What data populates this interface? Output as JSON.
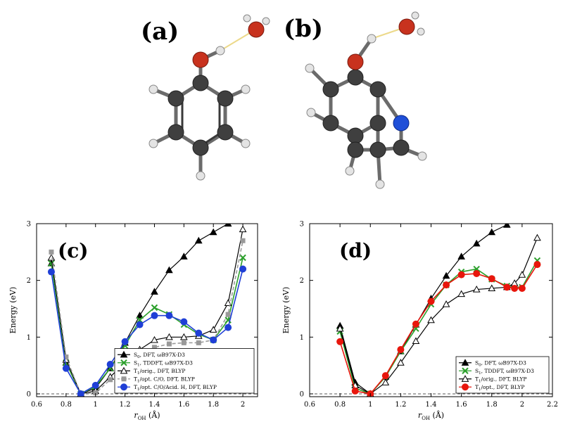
{
  "molecules": {
    "label_a": "(a)",
    "label_b": "(b)"
  },
  "chart_data": [
    {
      "type": "line",
      "panel_label": "(c)",
      "xlabel": "r_OH (Å)",
      "xlabel_main": "r",
      "xlabel_sub": "OH",
      "xlabel_unit": "(Å)",
      "ylabel": "Energy (eV)",
      "xlim": [
        0.6,
        2.1
      ],
      "ylim": [
        -0.05,
        3
      ],
      "xticks": [
        0.6,
        0.8,
        1.0,
        1.2,
        1.4,
        1.6,
        1.8,
        2.0
      ],
      "xtick_labels": [
        "0.6",
        "0.8",
        "1",
        "1.2",
        "1.4",
        "1.6",
        "1.8",
        "2"
      ],
      "yticks": [
        0,
        1,
        2,
        3
      ],
      "ytick_labels": [
        "0",
        "1",
        "2",
        "3"
      ],
      "grid": false,
      "legend_position": "bottom-right",
      "series": [
        {
          "name": "S0, DFT, ωB97X-D3",
          "label_main": "S",
          "label_sub": "0",
          "label_rest": ", DFT, ωB97X-D3",
          "color": "#000000",
          "marker": "triangle-filled",
          "dashed": false,
          "x": [
            0.7,
            0.8,
            0.9,
            1.0,
            1.1,
            1.2,
            1.3,
            1.4,
            1.5,
            1.6,
            1.7,
            1.8,
            1.9
          ],
          "y": [
            2.3,
            0.55,
            0.0,
            0.1,
            0.45,
            0.9,
            1.38,
            1.8,
            2.18,
            2.42,
            2.7,
            2.85,
            3.0
          ]
        },
        {
          "name": "S1, TDDFT, ωB97X-D3",
          "label_main": "S",
          "label_sub": "1",
          "label_rest": ", TDDFT, ωB97X-D3",
          "color": "#2ca02c",
          "marker": "x",
          "dashed": false,
          "x": [
            0.7,
            0.8,
            0.9,
            1.0,
            1.1,
            1.2,
            1.3,
            1.4,
            1.5,
            1.6,
            1.7,
            1.8,
            1.9,
            2.0
          ],
          "y": [
            2.3,
            0.55,
            0.0,
            0.13,
            0.45,
            0.85,
            1.3,
            1.52,
            1.4,
            1.22,
            1.05,
            0.95,
            1.3,
            2.4
          ]
        },
        {
          "name": "T1/orig., DFT, BLYP",
          "label_main": "T",
          "label_sub": "1",
          "label_rest": "/orig., DFT, BLYP",
          "color": "#000000",
          "marker": "triangle-open",
          "dashed": false,
          "x": [
            0.7,
            0.8,
            0.9,
            1.0,
            1.1,
            1.2,
            1.3,
            1.4,
            1.5,
            1.6,
            1.7,
            1.8,
            1.9,
            2.0
          ],
          "y": [
            2.4,
            0.6,
            0.0,
            0.05,
            0.3,
            0.55,
            0.78,
            0.95,
            1.0,
            1.0,
            1.02,
            1.13,
            1.6,
            2.9
          ]
        },
        {
          "name": "T1/opt. C/O, DFT, BLYP",
          "label_main": "T",
          "label_sub": "1",
          "label_rest": "/opt. C/O, DFT, BLYP",
          "color": "#999999",
          "marker": "square",
          "dashed": true,
          "x": [
            0.7,
            0.8,
            0.9,
            1.0,
            1.1,
            1.2,
            1.3,
            1.4,
            1.5,
            1.6,
            1.7,
            1.8,
            1.9,
            2.0
          ],
          "y": [
            2.5,
            0.65,
            0.0,
            0.02,
            0.25,
            0.48,
            0.68,
            0.82,
            0.88,
            0.9,
            0.9,
            0.95,
            1.4,
            2.7
          ]
        },
        {
          "name": "T1/opt. C/O/Acid. H, DFT, BLYP",
          "label_main": "T",
          "label_sub": "1",
          "label_rest": "/opt. C/O/Acid. H, DFT, BLYP",
          "color": "#1f3fd6",
          "marker": "circle",
          "dashed": false,
          "x": [
            0.7,
            0.8,
            0.9,
            1.0,
            1.1,
            1.2,
            1.3,
            1.4,
            1.5,
            1.6,
            1.7,
            1.8,
            1.9,
            2.0
          ],
          "y": [
            2.15,
            0.45,
            0.0,
            0.15,
            0.52,
            0.92,
            1.22,
            1.38,
            1.38,
            1.27,
            1.07,
            0.95,
            1.17,
            2.2
          ]
        }
      ]
    },
    {
      "type": "line",
      "panel_label": "(d)",
      "xlabel": "r_OH (Å)",
      "xlabel_main": "r",
      "xlabel_sub": "OH",
      "xlabel_unit": "(Å)",
      "ylabel": "Energy (eV)",
      "xlim": [
        0.6,
        2.2
      ],
      "ylim": [
        -0.05,
        3
      ],
      "xticks": [
        0.6,
        0.8,
        1.0,
        1.2,
        1.4,
        1.6,
        1.8,
        2.0,
        2.2
      ],
      "xtick_labels": [
        "0.6",
        "0.8",
        "1",
        "1.2",
        "1.4",
        "1.6",
        "1.8",
        "2",
        "2.2"
      ],
      "yticks": [
        0,
        1,
        2,
        3
      ],
      "ytick_labels": [
        "0",
        "1",
        "2",
        "3"
      ],
      "grid": false,
      "legend_position": "bottom-right",
      "series": [
        {
          "name": "S0, DFT, ωB97X-D3",
          "label_main": "S",
          "label_sub": "0",
          "label_rest": ", DFT, ωB97X-D3",
          "color": "#000000",
          "marker": "triangle-filled",
          "dashed": false,
          "x": [
            0.8,
            0.9,
            1.0,
            1.1,
            1.2,
            1.3,
            1.4,
            1.5,
            1.6,
            1.7,
            1.8,
            1.9
          ],
          "y": [
            1.2,
            0.2,
            0.0,
            0.3,
            0.75,
            1.22,
            1.68,
            2.08,
            2.42,
            2.65,
            2.85,
            2.98
          ]
        },
        {
          "name": "S1, TDDFT, ωB97X-D3",
          "label_main": "S",
          "label_sub": "1",
          "label_rest": ", TDDFT, ωB97X-D3",
          "color": "#2ca02c",
          "marker": "x",
          "dashed": false,
          "x": [
            0.8,
            0.9,
            1.0,
            1.1,
            1.2,
            1.3,
            1.4,
            1.5,
            1.6,
            1.7,
            1.8,
            1.9,
            1.95,
            2.0,
            2.1
          ],
          "y": [
            1.1,
            0.1,
            0.0,
            0.3,
            0.75,
            1.15,
            1.58,
            1.92,
            2.15,
            2.2,
            2.02,
            1.9,
            1.88,
            1.88,
            2.35
          ]
        },
        {
          "name": "T1/orig., DFT, BLYP",
          "label_main": "T",
          "label_sub": "1",
          "label_rest": "/orig., DFT, BLYP",
          "color": "#000000",
          "marker": "triangle-open",
          "dashed": false,
          "x": [
            0.8,
            0.9,
            1.0,
            1.1,
            1.2,
            1.3,
            1.4,
            1.5,
            1.6,
            1.7,
            1.8,
            1.9,
            1.95,
            2.0,
            2.1
          ],
          "y": [
            1.15,
            0.15,
            0.0,
            0.2,
            0.55,
            0.93,
            1.3,
            1.58,
            1.76,
            1.84,
            1.86,
            1.88,
            1.95,
            2.1,
            2.75
          ]
        },
        {
          "name": "T1/opt., DFT, BLYP",
          "label_main": "T",
          "label_sub": "1",
          "label_rest": "/opt., DFT, BLYP",
          "color": "#e8160c",
          "marker": "circle",
          "dashed": false,
          "x": [
            0.8,
            0.9,
            1.0,
            1.1,
            1.2,
            1.3,
            1.4,
            1.5,
            1.6,
            1.7,
            1.8,
            1.9,
            1.95,
            2.0,
            2.1
          ],
          "y": [
            0.92,
            0.05,
            0.0,
            0.32,
            0.78,
            1.23,
            1.63,
            1.92,
            2.1,
            2.12,
            2.03,
            1.88,
            1.86,
            1.86,
            2.28
          ]
        }
      ]
    }
  ]
}
